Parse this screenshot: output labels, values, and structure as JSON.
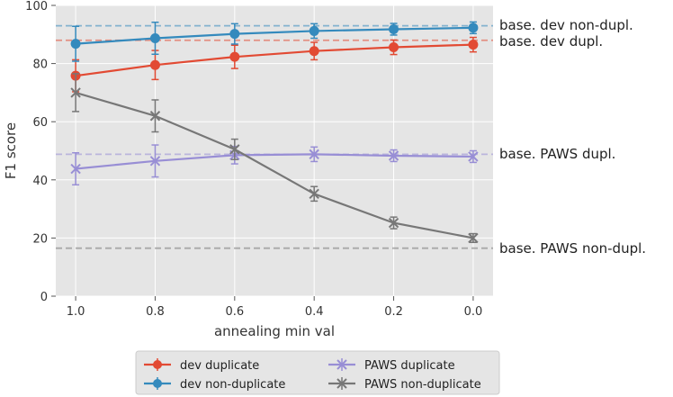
{
  "chart_data": {
    "type": "line",
    "title": "",
    "xlabel": "annealing min val",
    "ylabel": "F1 score",
    "x": [
      1.0,
      0.8,
      0.6,
      0.4,
      0.2,
      0.0
    ],
    "x_tick_labels": [
      "1.0",
      "0.8",
      "0.6",
      "0.4",
      "0.2",
      "0.0"
    ],
    "xlim": [
      1.05,
      -0.05
    ],
    "ylim": [
      0,
      100
    ],
    "y_ticks": [
      0,
      20,
      40,
      60,
      80,
      100
    ],
    "y_tick_labels": [
      "0",
      "20",
      "40",
      "60",
      "80",
      "100"
    ],
    "grid": true,
    "series": [
      {
        "name": "dev duplicate",
        "color": "#e24a33",
        "marker": "circle",
        "values": [
          75.8,
          79.5,
          82.3,
          84.3,
          85.6,
          86.5
        ],
        "err": [
          5.5,
          5,
          4,
          3,
          2.5,
          2.5
        ]
      },
      {
        "name": "dev non-duplicate",
        "color": "#348abd",
        "marker": "circle",
        "values": [
          86.8,
          88.7,
          90.2,
          91.2,
          91.8,
          92.3
        ],
        "err": [
          6,
          5.5,
          3.5,
          2.5,
          2,
          2
        ]
      },
      {
        "name": "PAWS duplicate",
        "color": "#988ed5",
        "marker": "x",
        "values": [
          43.8,
          46.5,
          48.5,
          48.8,
          48.3,
          48.0
        ],
        "err": [
          5.5,
          5.5,
          3,
          2.5,
          2,
          2
        ]
      },
      {
        "name": "PAWS non-duplicate",
        "color": "#777777",
        "marker": "x",
        "values": [
          70.0,
          62.0,
          50.5,
          35.2,
          25.2,
          20.0
        ],
        "err": [
          6.5,
          5.5,
          3.5,
          2.5,
          2,
          1.5
        ]
      }
    ],
    "reference_lines": [
      {
        "label": "base. dev non-dupl.",
        "value": 93.0,
        "color": "#348abd"
      },
      {
        "label": "base. dev dupl.",
        "value": 88.0,
        "color": "#e24a33"
      },
      {
        "label": "base. PAWS dupl.",
        "value": 48.8,
        "color": "#988ed5"
      },
      {
        "label": "base. PAWS non-dupl.",
        "value": 16.5,
        "color": "#777777"
      }
    ],
    "legend_position": "bottom",
    "legend_order": [
      0,
      2,
      1,
      3
    ]
  }
}
